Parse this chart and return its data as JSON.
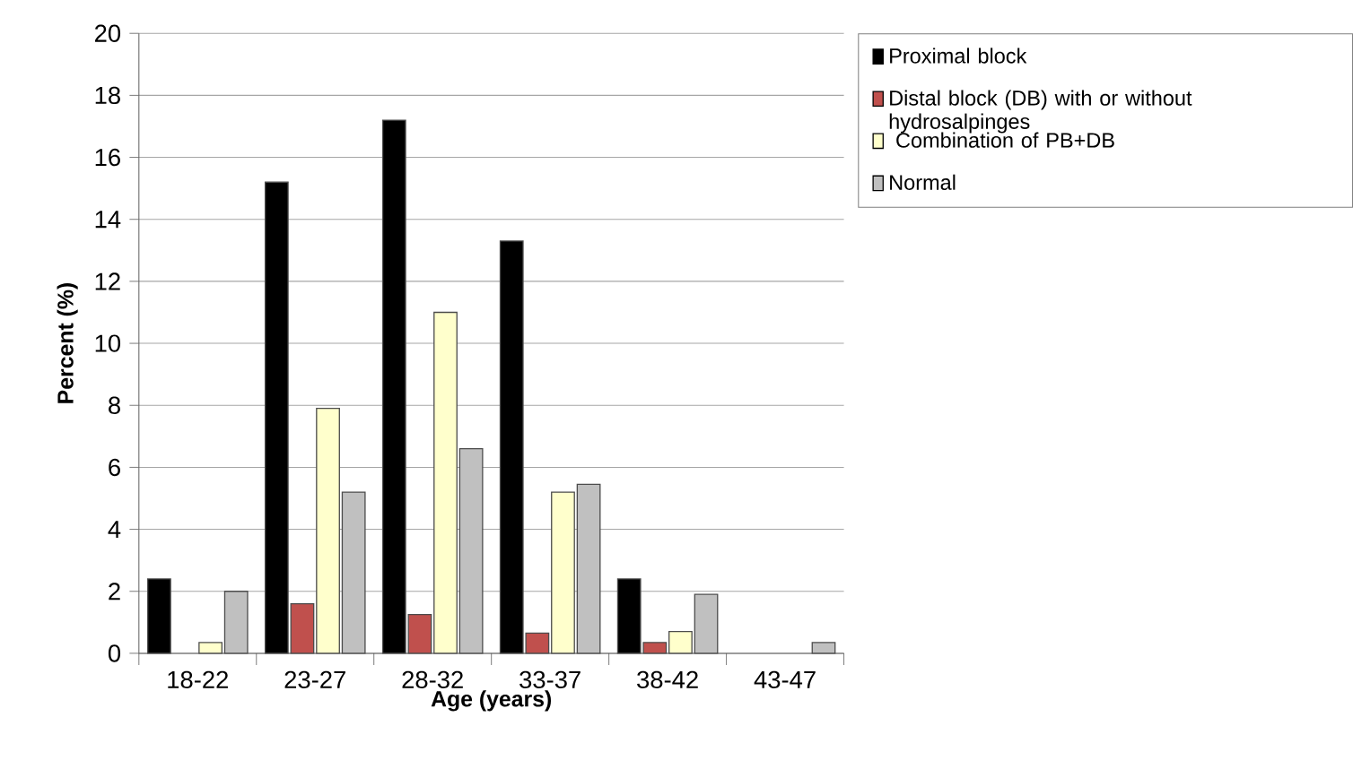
{
  "chart_data": {
    "type": "bar",
    "xlabel": "Age (years)",
    "ylabel": "Percent (%)",
    "categories": [
      "18-22",
      "23-27",
      "28-32",
      "33-37",
      "38-42",
      "43-47"
    ],
    "series": [
      {
        "name": "Proximal block",
        "color": "#000000",
        "values": [
          2.4,
          15.2,
          17.2,
          13.3,
          2.4,
          null
        ]
      },
      {
        "name": "Distal block (DB) with or without hydrosalpinges",
        "color": "#c0504d",
        "values": [
          null,
          1.6,
          1.25,
          0.65,
          0.35,
          null
        ]
      },
      {
        "name": " Combination of PB+DB",
        "color": "#ffffcc",
        "values": [
          0.35,
          7.9,
          11,
          5.2,
          0.7,
          null
        ]
      },
      {
        "name": "Normal",
        "color": "#c0c0c0",
        "values": [
          2,
          5.2,
          6.6,
          5.45,
          1.9,
          0.35
        ]
      }
    ],
    "ylim": [
      0,
      20
    ],
    "yticks": [
      0,
      2,
      4,
      6,
      8,
      10,
      12,
      14,
      16,
      18,
      20
    ],
    "grid": "y",
    "legend": "top right"
  }
}
